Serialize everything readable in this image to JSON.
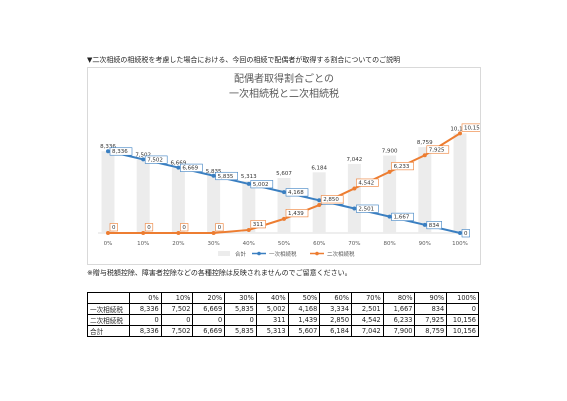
{
  "heading": "▼二次相続の相続税を考慮した場合における、今回の相続で配偶者が取得する割合についてのご説明",
  "note": "※贈与税額控除、障害者控除などの各種控除は反映されませんのでご留意ください。",
  "colors": {
    "total": "#ececec",
    "first": "#3a7fc1",
    "second": "#ed7d31",
    "grid": "#dddddd"
  },
  "chart_data": {
    "type": "bar",
    "title": [
      "配偶者取得割合ごとの",
      "一次相続税と二次相続税"
    ],
    "categories": [
      "0%",
      "10%",
      "20%",
      "30%",
      "40%",
      "50%",
      "60%",
      "70%",
      "80%",
      "90%",
      "100%"
    ],
    "series": [
      {
        "name": "合計",
        "type": "bar",
        "values": [
          8336,
          7502,
          6669,
          5835,
          5313,
          5607,
          6184,
          7042,
          7900,
          8759,
          10156
        ],
        "labels": [
          "8,336",
          "7,502",
          "6,669",
          "5,835",
          "5,313",
          "5,607",
          "6,184",
          "7,042",
          "7,900",
          "8,759",
          "10,156"
        ]
      },
      {
        "name": "一次相続税",
        "type": "line",
        "values": [
          8336,
          7502,
          6669,
          5835,
          5002,
          4168,
          3334,
          2501,
          1667,
          834,
          0
        ],
        "labels": [
          "8,336",
          "7,502",
          "6,669",
          "5,835",
          "5,002",
          "4,168",
          "3,334",
          "2,501",
          "1,667",
          "834",
          "0"
        ]
      },
      {
        "name": "二次相続税",
        "type": "line",
        "values": [
          0,
          0,
          0,
          0,
          311,
          1439,
          2850,
          4542,
          6233,
          7925,
          10156
        ],
        "labels": [
          "0",
          "0",
          "0",
          "0",
          "311",
          "1,439",
          "2,850",
          "4,542",
          "6,233",
          "7,925",
          "10,156"
        ]
      }
    ],
    "ylim": [
      0,
      10500
    ],
    "legend_position": "bottom",
    "grid": true
  },
  "table": {
    "headers": [
      "",
      "0%",
      "10%",
      "20%",
      "30%",
      "40%",
      "50%",
      "60%",
      "70%",
      "80%",
      "90%",
      "100%"
    ],
    "rows": [
      [
        "一次相続税",
        "8,336",
        "7,502",
        "6,669",
        "5,835",
        "5,002",
        "4,168",
        "3,334",
        "2,501",
        "1,667",
        "834",
        "0"
      ],
      [
        "二次相続税",
        "0",
        "0",
        "0",
        "0",
        "311",
        "1,439",
        "2,850",
        "4,542",
        "6,233",
        "7,925",
        "10,156"
      ],
      [
        "合計",
        "8,336",
        "7,502",
        "6,669",
        "5,835",
        "5,313",
        "5,607",
        "6,184",
        "7,042",
        "7,900",
        "8,759",
        "10,156"
      ]
    ]
  }
}
